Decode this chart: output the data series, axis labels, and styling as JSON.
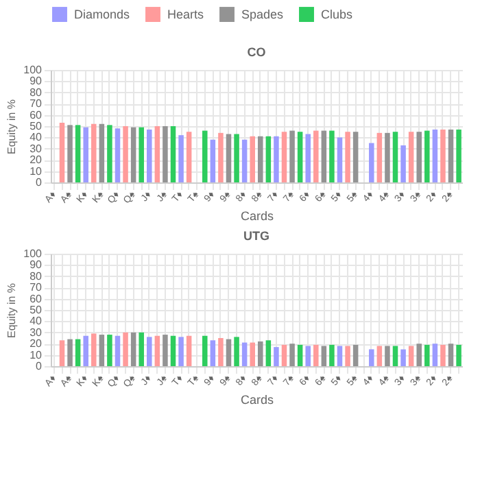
{
  "chart_data": [
    {
      "type": "bar",
      "title": "CO",
      "xlabel": "Cards",
      "ylabel": "Equity in %",
      "ylim": [
        0,
        100
      ],
      "yticks": [
        0,
        10,
        20,
        30,
        40,
        50,
        60,
        70,
        80,
        90,
        100
      ],
      "grid": true,
      "legend": "top",
      "categories": [
        "A♦",
        null,
        "A♠",
        null,
        "K♦",
        null,
        "K♠",
        null,
        "Q♦",
        null,
        "Q♠",
        null,
        "J♦",
        null,
        "J♠",
        null,
        "T♦",
        null,
        "T♠",
        null,
        "9♦",
        null,
        "9♠",
        null,
        "8♦",
        null,
        "8♠",
        null,
        "7♦",
        null,
        "7♠",
        null,
        "6♦",
        null,
        "6♠",
        null,
        "5♦",
        null,
        "5♠",
        null,
        "4♦",
        null,
        "4♠",
        null,
        "3♦",
        null,
        "3♠",
        null,
        "2♦",
        null,
        "2♠",
        null
      ],
      "series": [
        {
          "name": "Diamonds",
          "color": "#9b9bff",
          "values": [
            null,
            null,
            null,
            null,
            49,
            null,
            null,
            null,
            48,
            null,
            null,
            null,
            47,
            null,
            null,
            null,
            42,
            null,
            null,
            null,
            38,
            null,
            null,
            null,
            38,
            null,
            null,
            null,
            41,
            null,
            null,
            null,
            43,
            null,
            null,
            null,
            40,
            null,
            null,
            null,
            35,
            null,
            null,
            null,
            33,
            null,
            null,
            null,
            47,
            null,
            null,
            null
          ]
        },
        {
          "name": "Hearts",
          "color": "#ff9b9b",
          "values": [
            null,
            53,
            null,
            null,
            null,
            52,
            null,
            null,
            null,
            50,
            null,
            null,
            null,
            50,
            null,
            null,
            null,
            45,
            null,
            null,
            null,
            44,
            null,
            null,
            null,
            41,
            null,
            null,
            null,
            45,
            null,
            null,
            null,
            46,
            null,
            null,
            null,
            45,
            null,
            null,
            null,
            44,
            null,
            null,
            null,
            45,
            null,
            null,
            null,
            47,
            null,
            null
          ]
        },
        {
          "name": "Spades",
          "color": "#939393",
          "values": [
            null,
            null,
            51,
            null,
            null,
            null,
            52,
            null,
            null,
            null,
            49,
            null,
            null,
            null,
            50,
            null,
            null,
            null,
            null,
            null,
            null,
            null,
            43,
            null,
            null,
            null,
            41,
            null,
            null,
            null,
            46,
            null,
            null,
            null,
            46,
            null,
            null,
            null,
            45,
            null,
            null,
            null,
            44,
            null,
            null,
            null,
            45,
            null,
            null,
            null,
            47,
            null
          ]
        },
        {
          "name": "Clubs",
          "color": "#2ecc5e",
          "values": [
            null,
            null,
            null,
            51,
            null,
            null,
            null,
            51,
            null,
            null,
            null,
            49,
            null,
            null,
            null,
            50,
            null,
            null,
            null,
            46,
            null,
            null,
            null,
            43,
            null,
            null,
            null,
            41,
            null,
            null,
            null,
            45,
            null,
            null,
            null,
            46,
            null,
            null,
            null,
            null,
            null,
            null,
            null,
            45,
            null,
            null,
            null,
            46,
            null,
            null,
            null,
            47
          ]
        }
      ]
    },
    {
      "type": "bar",
      "title": "UTG",
      "xlabel": "Cards",
      "ylabel": "Equity in %",
      "ylim": [
        0,
        100
      ],
      "yticks": [
        0,
        10,
        20,
        30,
        40,
        50,
        60,
        70,
        80,
        90,
        100
      ],
      "grid": true,
      "legend": "top",
      "categories": [
        "A♦",
        null,
        "A♠",
        null,
        "K♦",
        null,
        "K♠",
        null,
        "Q♦",
        null,
        "Q♠",
        null,
        "J♦",
        null,
        "J♠",
        null,
        "T♦",
        null,
        "T♠",
        null,
        "9♦",
        null,
        "9♠",
        null,
        "8♦",
        null,
        "8♠",
        null,
        "7♦",
        null,
        "7♠",
        null,
        "6♦",
        null,
        "6♠",
        null,
        "5♦",
        null,
        "5♠",
        null,
        "4♦",
        null,
        "4♠",
        null,
        "3♦",
        null,
        "3♠",
        null,
        "2♦",
        null,
        "2♠",
        null
      ],
      "series": [
        {
          "name": "Diamonds",
          "color": "#9b9bff",
          "values": [
            null,
            null,
            null,
            null,
            27,
            null,
            null,
            null,
            27,
            null,
            null,
            null,
            26,
            null,
            null,
            null,
            26,
            null,
            null,
            null,
            23,
            null,
            null,
            null,
            21,
            null,
            null,
            null,
            17,
            null,
            null,
            null,
            18,
            null,
            null,
            null,
            18,
            null,
            null,
            null,
            15,
            null,
            null,
            null,
            15,
            null,
            null,
            null,
            20,
            null,
            null,
            null
          ]
        },
        {
          "name": "Hearts",
          "color": "#ff9b9b",
          "values": [
            null,
            23,
            null,
            null,
            null,
            29,
            null,
            null,
            null,
            30,
            null,
            null,
            null,
            27,
            null,
            null,
            null,
            27,
            null,
            null,
            null,
            25,
            null,
            null,
            null,
            21,
            null,
            null,
            null,
            19,
            null,
            null,
            null,
            19,
            null,
            null,
            null,
            18,
            null,
            null,
            null,
            18,
            null,
            null,
            null,
            18,
            null,
            null,
            null,
            19,
            null,
            null
          ]
        },
        {
          "name": "Spades",
          "color": "#939393",
          "values": [
            null,
            null,
            24,
            null,
            null,
            null,
            28,
            null,
            null,
            null,
            30,
            null,
            null,
            null,
            28,
            null,
            null,
            null,
            null,
            null,
            null,
            null,
            24,
            null,
            null,
            null,
            22,
            null,
            null,
            null,
            20,
            null,
            null,
            null,
            18,
            null,
            null,
            null,
            19,
            null,
            null,
            null,
            18,
            null,
            null,
            null,
            20,
            null,
            null,
            null,
            20,
            null
          ]
        },
        {
          "name": "Clubs",
          "color": "#2ecc5e",
          "values": [
            null,
            null,
            null,
            24,
            null,
            null,
            null,
            28,
            null,
            null,
            null,
            30,
            null,
            null,
            null,
            27,
            null,
            null,
            null,
            27,
            null,
            null,
            null,
            26,
            null,
            null,
            null,
            23,
            null,
            null,
            null,
            19,
            null,
            null,
            null,
            19,
            null,
            null,
            null,
            null,
            null,
            null,
            null,
            18,
            null,
            null,
            null,
            19,
            null,
            null,
            null,
            19
          ]
        }
      ]
    }
  ]
}
